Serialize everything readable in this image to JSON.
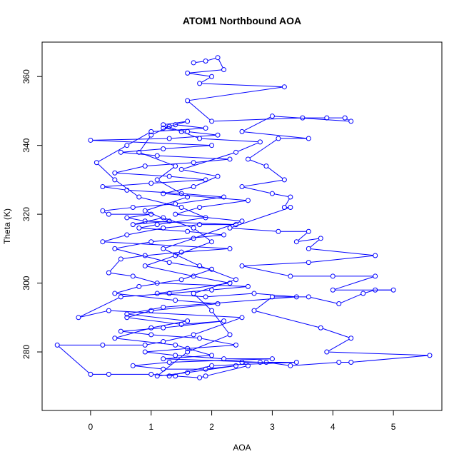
{
  "chart_data": {
    "type": "line",
    "title": "ATOM1 Northbound AOA",
    "xlabel": "AOA",
    "ylabel": "Theta (K)",
    "xlim": [
      -0.8,
      5.8
    ],
    "ylim": [
      263,
      370
    ],
    "x_ticks": [
      "0",
      "1",
      "2",
      "3",
      "4",
      "5"
    ],
    "y_ticks": [
      "280",
      "300",
      "320",
      "340",
      "360"
    ],
    "grid": false,
    "legend": "none",
    "series": [
      {
        "color": "#0000ff",
        "marker": "open-circle",
        "points": [
          [
            1.7,
            364
          ],
          [
            1.9,
            364.5
          ],
          [
            2.1,
            365.5
          ],
          [
            2.2,
            362
          ],
          [
            1.6,
            361
          ],
          [
            2.0,
            360
          ],
          [
            1.8,
            358
          ],
          [
            3.2,
            357
          ],
          [
            1.6,
            353
          ],
          [
            2.0,
            347
          ],
          [
            3.5,
            348
          ],
          [
            3.9,
            348
          ],
          [
            4.2,
            348
          ],
          [
            4.3,
            347
          ],
          [
            3.0,
            348.5
          ],
          [
            2.5,
            344
          ],
          [
            3.6,
            342
          ],
          [
            3.1,
            342
          ],
          [
            2.6,
            336
          ],
          [
            2.9,
            334
          ],
          [
            3.2,
            330
          ],
          [
            2.5,
            328
          ],
          [
            3.0,
            326
          ],
          [
            3.3,
            325
          ],
          [
            3.2,
            322
          ],
          [
            3.3,
            322
          ],
          [
            2.3,
            316
          ],
          [
            3.1,
            315
          ],
          [
            3.6,
            315
          ],
          [
            3.4,
            312
          ],
          [
            3.8,
            313
          ],
          [
            3.6,
            310
          ],
          [
            4.7,
            308
          ],
          [
            3.6,
            306
          ],
          [
            2.5,
            305
          ],
          [
            3.3,
            302
          ],
          [
            4.0,
            302
          ],
          [
            4.7,
            302
          ],
          [
            4.0,
            298
          ],
          [
            5.0,
            298
          ],
          [
            4.7,
            298
          ],
          [
            4.5,
            297
          ],
          [
            4.1,
            294
          ],
          [
            3.6,
            296
          ],
          [
            3.0,
            296
          ],
          [
            2.7,
            292
          ],
          [
            3.8,
            287
          ],
          [
            4.3,
            284
          ],
          [
            3.9,
            280
          ],
          [
            5.6,
            279
          ],
          [
            4.3,
            277
          ],
          [
            4.1,
            277
          ],
          [
            3.3,
            276
          ],
          [
            2.9,
            277
          ],
          [
            2.5,
            277
          ],
          [
            2.6,
            276
          ],
          [
            1.9,
            273
          ],
          [
            1.8,
            272.5
          ],
          [
            1.4,
            273
          ],
          [
            1.0,
            273.5
          ],
          [
            0.3,
            273.5
          ],
          [
            0.0,
            273.5
          ],
          [
            -0.55,
            282
          ],
          [
            0.2,
            282
          ],
          [
            0.9,
            282
          ],
          [
            1.2,
            283
          ],
          [
            1.7,
            285
          ],
          [
            2.5,
            290
          ],
          [
            0.3,
            292
          ],
          [
            -0.2,
            290
          ],
          [
            0.5,
            296
          ],
          [
            1.3,
            297
          ],
          [
            2.0,
            298
          ],
          [
            2.6,
            299
          ],
          [
            1.1,
            300
          ],
          [
            0.7,
            302
          ],
          [
            0.3,
            303
          ],
          [
            0.5,
            307
          ],
          [
            0.9,
            308
          ],
          [
            1.5,
            309
          ],
          [
            2.3,
            310
          ],
          [
            0.2,
            312
          ],
          [
            0.6,
            314
          ],
          [
            1.2,
            316
          ],
          [
            1.8,
            317
          ],
          [
            2.4,
            317
          ],
          [
            0.9,
            318
          ],
          [
            0.6,
            319
          ],
          [
            1.0,
            320
          ],
          [
            0.3,
            320
          ],
          [
            0.2,
            321
          ],
          [
            0.7,
            322
          ],
          [
            1.4,
            323
          ],
          [
            2.2,
            325
          ],
          [
            1.5,
            326
          ],
          [
            0.6,
            327
          ],
          [
            0.2,
            328
          ],
          [
            1.0,
            329
          ],
          [
            1.9,
            330
          ],
          [
            1.3,
            331
          ],
          [
            0.4,
            332
          ],
          [
            0.9,
            334
          ],
          [
            1.7,
            335
          ],
          [
            2.3,
            336
          ],
          [
            1.1,
            337
          ],
          [
            0.5,
            338
          ],
          [
            1.2,
            339
          ],
          [
            2.0,
            340
          ],
          [
            0.0,
            341.5
          ],
          [
            1.3,
            342
          ],
          [
            2.1,
            343
          ],
          [
            1.6,
            344
          ],
          [
            1.2,
            345
          ],
          [
            1.4,
            346
          ],
          [
            1.9,
            345
          ],
          [
            1.0,
            344
          ],
          [
            0.6,
            340
          ],
          [
            0.1,
            335
          ],
          [
            0.4,
            330
          ],
          [
            0.8,
            325
          ],
          [
            1.5,
            322
          ],
          [
            1.9,
            319
          ],
          [
            1.1,
            317
          ],
          [
            0.8,
            316
          ],
          [
            1.6,
            315
          ],
          [
            2.2,
            314
          ],
          [
            1.0,
            312
          ],
          [
            0.4,
            310
          ],
          [
            1.3,
            306
          ],
          [
            2.0,
            304
          ],
          [
            1.5,
            301
          ],
          [
            0.8,
            299
          ],
          [
            0.4,
            297
          ],
          [
            1.4,
            295
          ],
          [
            2.1,
            294
          ],
          [
            1.0,
            292
          ],
          [
            0.6,
            290
          ],
          [
            1.5,
            288
          ],
          [
            2.2,
            289
          ],
          [
            1.2,
            287
          ],
          [
            0.5,
            286
          ],
          [
            1.0,
            285
          ],
          [
            1.8,
            284
          ],
          [
            2.4,
            282
          ],
          [
            1.6,
            281
          ],
          [
            0.9,
            280
          ],
          [
            1.4,
            279
          ],
          [
            2.2,
            278
          ],
          [
            3.0,
            278
          ],
          [
            1.3,
            277
          ],
          [
            0.7,
            276
          ],
          [
            1.2,
            275
          ],
          [
            1.9,
            275
          ],
          [
            2.4,
            276
          ],
          [
            1.6,
            274
          ],
          [
            1.1,
            273
          ],
          [
            1.6,
            280
          ],
          [
            2.3,
            285
          ],
          [
            2.0,
            292
          ],
          [
            1.7,
            297
          ],
          [
            2.4,
            301
          ],
          [
            1.8,
            305
          ],
          [
            1.2,
            310
          ],
          [
            1.7,
            313
          ],
          [
            2.5,
            318
          ],
          [
            1.4,
            320
          ],
          [
            1.8,
            322
          ],
          [
            2.6,
            324
          ],
          [
            1.2,
            326
          ],
          [
            1.7,
            328
          ],
          [
            2.1,
            331
          ],
          [
            1.5,
            333
          ],
          [
            2.4,
            338
          ],
          [
            2.8,
            341
          ],
          [
            1.8,
            342
          ],
          [
            1.5,
            344
          ],
          [
            1.2,
            346
          ],
          [
            1.6,
            347
          ],
          [
            1.3,
            345.5
          ],
          [
            1.0,
            343
          ],
          [
            0.8,
            338
          ],
          [
            1.4,
            334
          ],
          [
            1.1,
            330
          ],
          [
            1.6,
            325
          ],
          [
            0.9,
            321
          ],
          [
            1.3,
            318
          ],
          [
            0.7,
            317
          ],
          [
            1.2,
            319
          ],
          [
            1.7,
            316
          ],
          [
            2.0,
            312
          ],
          [
            1.4,
            308
          ],
          [
            0.9,
            305
          ],
          [
            1.7,
            302
          ],
          [
            2.3,
            300
          ],
          [
            1.1,
            297
          ],
          [
            1.9,
            296
          ],
          [
            2.7,
            297
          ],
          [
            3.4,
            296
          ],
          [
            1.2,
            293
          ],
          [
            0.6,
            291
          ],
          [
            1.6,
            289
          ],
          [
            1.0,
            287
          ],
          [
            0.4,
            284
          ],
          [
            1.4,
            282
          ],
          [
            2.0,
            279
          ],
          [
            1.2,
            278
          ],
          [
            2.8,
            277
          ],
          [
            3.4,
            277
          ],
          [
            2.0,
            276
          ],
          [
            1.3,
            273
          ]
        ]
      }
    ]
  }
}
